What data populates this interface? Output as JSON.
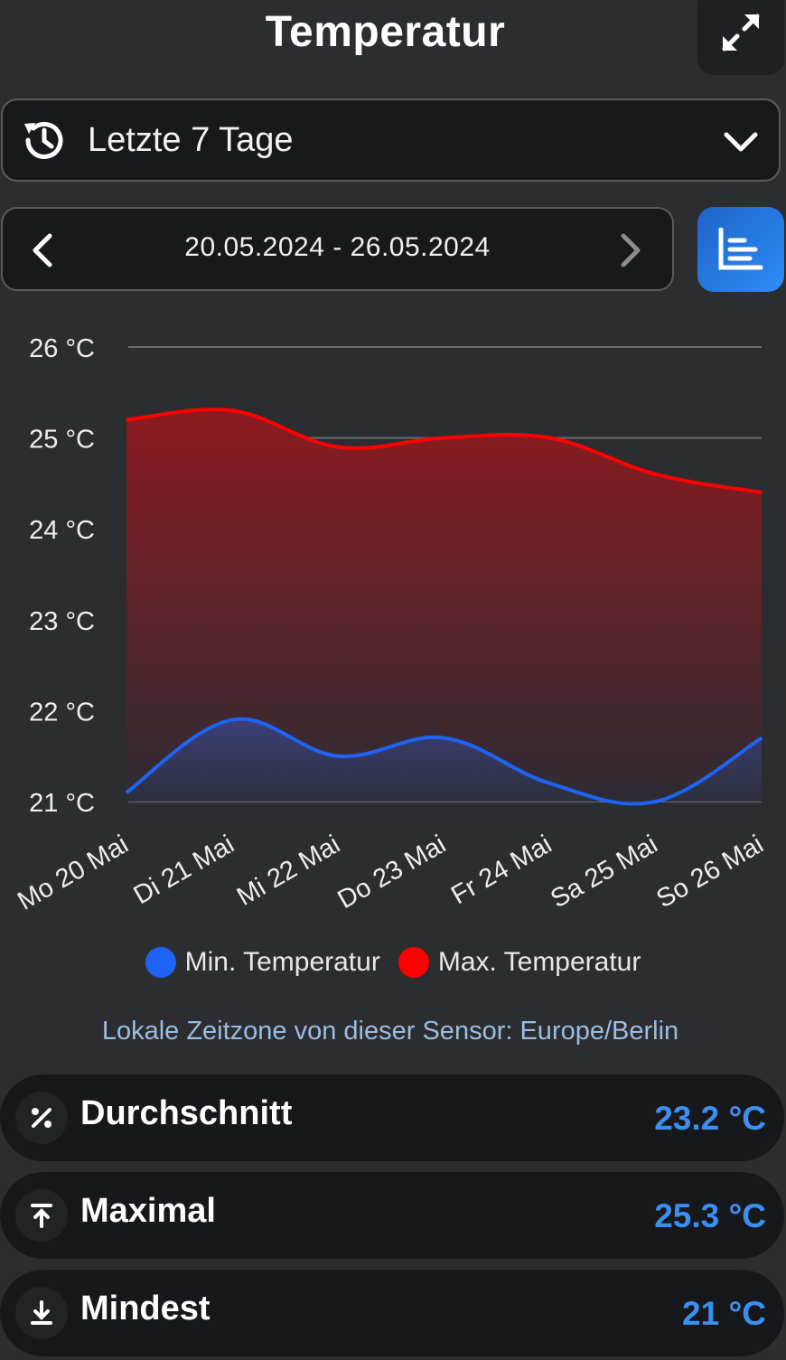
{
  "header": {
    "title": "Temperatur",
    "expand_icon": "expand-arrows-icon"
  },
  "range_select": {
    "icon": "history-icon",
    "value": "Letzte 7 Tage",
    "chevron_icon": "chevron-down-icon"
  },
  "date_nav": {
    "range": "20.05.2024 - 26.05.2024",
    "prev_icon": "chevron-left-icon",
    "next_icon": "chevron-right-icon"
  },
  "chart_toggle": {
    "icon": "chart-icon",
    "color": "#2a80e8"
  },
  "chart_data": {
    "type": "area",
    "categories": [
      "Mo 20 Mai",
      "Di 21 Mai",
      "Mi 22 Mai",
      "Do 23 Mai",
      "Fr 24 Mai",
      "Sa 25 Mai",
      "So 26 Mai"
    ],
    "series": [
      {
        "name": "Min. Temperatur",
        "color": "#1e63f5",
        "values": [
          21.1,
          21.9,
          21.5,
          21.7,
          21.2,
          21.0,
          21.7
        ]
      },
      {
        "name": "Max. Temperatur",
        "color": "#ff0000",
        "values": [
          25.2,
          25.3,
          24.9,
          25.0,
          25.0,
          24.6,
          24.4
        ]
      }
    ],
    "y_ticks": [
      "21 °C",
      "22 °C",
      "23 °C",
      "24 °C",
      "25 °C",
      "26 °C"
    ],
    "ylim": [
      21,
      26
    ],
    "grid": true,
    "legend_position": "bottom"
  },
  "timezone_note": "Lokale Zeitzone von dieser Sensor: Europe/Berlin",
  "stats": [
    {
      "icon": "percent-icon",
      "label": "Durchschnitt",
      "value": "23.2 °C"
    },
    {
      "icon": "arrow-up-to-line-icon",
      "label": "Maximal",
      "value": "25.3 °C"
    },
    {
      "icon": "arrow-down-to-line-icon",
      "label": "Mindest",
      "value": "21 °C"
    }
  ]
}
